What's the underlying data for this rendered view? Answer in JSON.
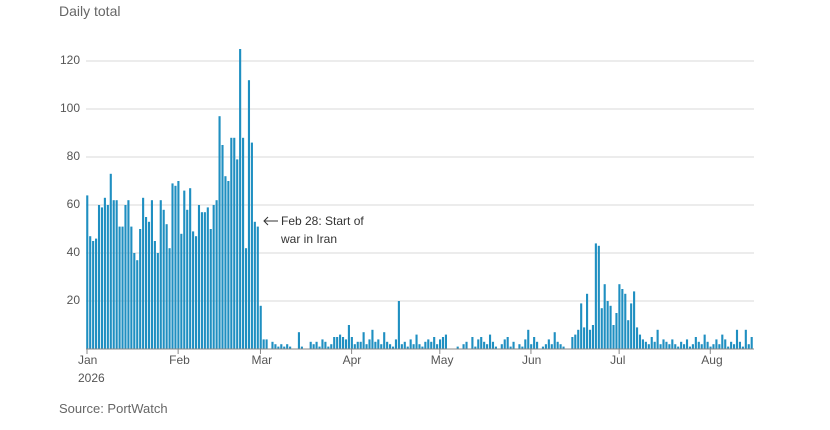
{
  "chart_data": {
    "type": "bar",
    "title": "Daily total",
    "source": "Source: PortWatch",
    "annotation": "Feb 28: Start of war in Iran",
    "color": "#1f8fc1",
    "grid": true,
    "ylim": [
      0,
      130
    ],
    "yticks": [
      20,
      40,
      60,
      80,
      100,
      120
    ],
    "categories": [
      "Jan 2026",
      null,
      null,
      null,
      null,
      null,
      null,
      null,
      null,
      null,
      null,
      null,
      null,
      null,
      null,
      null,
      null,
      null,
      null,
      null,
      null,
      null,
      null,
      null,
      null,
      null,
      null,
      null,
      null,
      null,
      null,
      "Feb",
      null,
      null,
      null,
      null,
      null,
      null,
      null,
      null,
      null,
      null,
      null,
      null,
      null,
      null,
      null,
      null,
      null,
      null,
      null,
      null,
      null,
      null,
      null,
      null,
      null,
      null,
      null,
      "Mar",
      null,
      null,
      null,
      null,
      null,
      null,
      null,
      null,
      null,
      null,
      null,
      null,
      null,
      null,
      null,
      null,
      null,
      null,
      null,
      null,
      null,
      null,
      null,
      null,
      null,
      null,
      null,
      null,
      null,
      null,
      "Apr",
      null,
      null,
      null,
      null,
      null,
      null,
      null,
      null,
      null,
      null,
      null,
      null,
      null,
      null,
      null,
      null,
      null,
      null,
      null,
      null,
      null,
      null,
      null,
      null,
      null,
      null,
      null,
      null,
      null,
      "May",
      null,
      null,
      null,
      null,
      null,
      null,
      null,
      null,
      null,
      null,
      null,
      null,
      null,
      null,
      null,
      null,
      null,
      null,
      null,
      null,
      null,
      null,
      null,
      null,
      null,
      null,
      null,
      null,
      null,
      null,
      "Jun",
      null,
      null,
      null,
      null,
      null,
      null,
      null,
      null,
      null,
      null,
      null,
      null,
      null,
      null,
      null,
      null,
      null,
      null,
      null,
      null,
      null,
      null,
      null,
      null,
      null,
      null,
      null,
      null,
      null,
      "Jul",
      null,
      null,
      null,
      null,
      null,
      null,
      null,
      null,
      null,
      null,
      null,
      null,
      null,
      null,
      null,
      null,
      null,
      null,
      null,
      null,
      null,
      null,
      null,
      null,
      null,
      null,
      null,
      null,
      null,
      null,
      "Aug",
      null,
      null,
      null,
      null,
      null,
      null,
      null,
      null,
      null,
      null,
      null,
      null,
      null,
      null
    ],
    "values": [
      64,
      47,
      45,
      46,
      60,
      59,
      63,
      60,
      73,
      62,
      62,
      51,
      51,
      60,
      62,
      51,
      40,
      37,
      50,
      63,
      55,
      53,
      62,
      45,
      40,
      62,
      58,
      52,
      42,
      69,
      68,
      70,
      48,
      66,
      58,
      67,
      49,
      47,
      60,
      57,
      57,
      59,
      50,
      60,
      62,
      97,
      85,
      72,
      70,
      88,
      88,
      79,
      125,
      88,
      42,
      112,
      86,
      53,
      51,
      18,
      4,
      4,
      0,
      3,
      2,
      1,
      2,
      1,
      2,
      1,
      0,
      0,
      7,
      1,
      0,
      0,
      3,
      2,
      3,
      1,
      4,
      3,
      1,
      2,
      5,
      5,
      6,
      5,
      4,
      10,
      5,
      2,
      3,
      3,
      7,
      2,
      4,
      8,
      3,
      4,
      2,
      7,
      3,
      2,
      1,
      4,
      20,
      2,
      3,
      1,
      4,
      2,
      6,
      2,
      1,
      3,
      4,
      3,
      5,
      2,
      4,
      5,
      6,
      0,
      0,
      0,
      1,
      0,
      2,
      3,
      0,
      5,
      1,
      4,
      5,
      3,
      2,
      6,
      3,
      1,
      0,
      2,
      4,
      5,
      1,
      3,
      0,
      2,
      1,
      4,
      8,
      2,
      5,
      3,
      0,
      1,
      2,
      4,
      2,
      7,
      3,
      2,
      1,
      0,
      0,
      5,
      6,
      8,
      19,
      9,
      23,
      8,
      10,
      44,
      43,
      17,
      27,
      20,
      18,
      10,
      15,
      27,
      25,
      23,
      12,
      19,
      24,
      9,
      6,
      4,
      3,
      2,
      5,
      3,
      8,
      2,
      4,
      3,
      2,
      4,
      2,
      1,
      3,
      2,
      4,
      1,
      2,
      5,
      3,
      2,
      6,
      3,
      1,
      2,
      4,
      2,
      6,
      4,
      1,
      3,
      2,
      8,
      3,
      1,
      8,
      2,
      5
    ]
  }
}
